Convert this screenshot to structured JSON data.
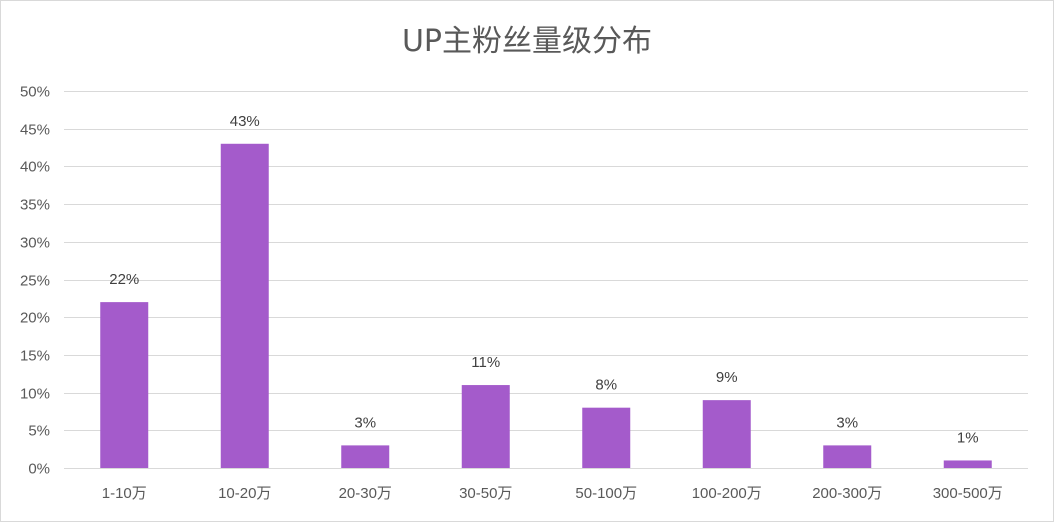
{
  "chart_data": {
    "type": "bar",
    "title": "UP主粉丝量级分布",
    "xlabel": "",
    "ylabel": "",
    "categories": [
      "1-10万",
      "10-20万",
      "20-30万",
      "30-50万",
      "50-100万",
      "100-200万",
      "200-300万",
      "300-500万"
    ],
    "values": [
      22,
      43,
      3,
      11,
      8,
      9,
      3,
      1
    ],
    "data_labels": [
      "22%",
      "43%",
      "3%",
      "11%",
      "8%",
      "9%",
      "3%",
      "1%"
    ],
    "ylim": [
      0,
      50
    ],
    "yticks": [
      0,
      5,
      10,
      15,
      20,
      25,
      30,
      35,
      40,
      45,
      50
    ],
    "ytick_labels": [
      "0%",
      "5%",
      "10%",
      "15%",
      "20%",
      "25%",
      "30%",
      "35%",
      "40%",
      "45%",
      "50%"
    ],
    "grid": true,
    "legend": "none",
    "colors": {
      "bar": "#a45bcb",
      "grid": "#d9d9d9",
      "text": "#595959"
    }
  }
}
